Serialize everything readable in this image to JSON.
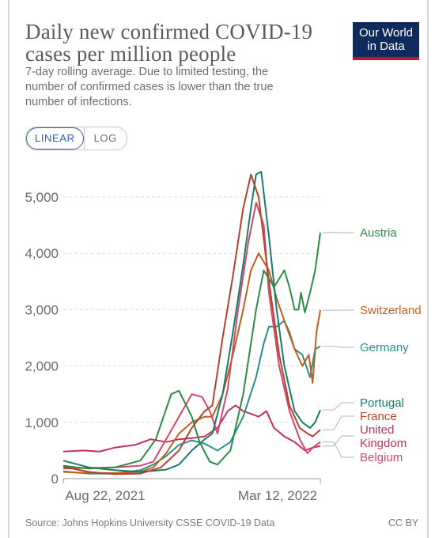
{
  "header": {
    "title": "Daily new confirmed COVID-19 cases per million people",
    "subtitle": "7-day rolling average. Due to limited testing, the number of confirmed cases is lower than the true number of infections."
  },
  "logo": {
    "line1": "Our World",
    "line2": "in Data",
    "bg_color": "#0f2b5b",
    "accent_color": "#c8102e"
  },
  "scale_toggle": {
    "linear_label": "LINEAR",
    "log_label": "LOG",
    "selected": "LINEAR"
  },
  "footer": {
    "source": "Source: Johns Hopkins University CSSE COVID-19 Data",
    "license": "CC BY"
  },
  "chart_data": {
    "type": "line",
    "title": "Daily new confirmed COVID-19 cases per million people",
    "ylim": [
      0,
      5500
    ],
    "y_ticks": [
      0,
      1000,
      2000,
      3000,
      4000,
      5000
    ],
    "y_tick_labels": [
      "0",
      "1,000",
      "2,000",
      "3,000",
      "4,000",
      "5,000"
    ],
    "x_tick_labels": [
      "Aug 22, 2021",
      "Mar 12, 2022"
    ],
    "grid": "horizontal dashed",
    "legend": "right, labels at line ends",
    "series": [
      {
        "name": "Austria",
        "color": "#2e8b47",
        "points": [
          [
            0,
            230
          ],
          [
            0.05,
            200
          ],
          [
            0.1,
            180
          ],
          [
            0.2,
            200
          ],
          [
            0.3,
            320
          ],
          [
            0.36,
            700
          ],
          [
            0.42,
            1500
          ],
          [
            0.45,
            1560
          ],
          [
            0.5,
            1100
          ],
          [
            0.53,
            650
          ],
          [
            0.57,
            300
          ],
          [
            0.6,
            250
          ],
          [
            0.65,
            500
          ],
          [
            0.7,
            1500
          ],
          [
            0.75,
            3000
          ],
          [
            0.78,
            3700
          ],
          [
            0.82,
            3400
          ],
          [
            0.86,
            3700
          ],
          [
            0.88,
            3400
          ],
          [
            0.9,
            3000
          ],
          [
            0.915,
            3000
          ],
          [
            0.925,
            3300
          ],
          [
            0.94,
            2950
          ],
          [
            0.96,
            3300
          ],
          [
            0.98,
            3700
          ],
          [
            1,
            4370
          ]
        ]
      },
      {
        "name": "Switzerland",
        "color": "#c15f1e",
        "points": [
          [
            0,
            120
          ],
          [
            0.1,
            100
          ],
          [
            0.2,
            100
          ],
          [
            0.3,
            120
          ],
          [
            0.35,
            200
          ],
          [
            0.4,
            450
          ],
          [
            0.45,
            800
          ],
          [
            0.5,
            1000
          ],
          [
            0.55,
            1100
          ],
          [
            0.58,
            1100
          ],
          [
            0.62,
            1500
          ],
          [
            0.66,
            2200
          ],
          [
            0.7,
            3000
          ],
          [
            0.73,
            3700
          ],
          [
            0.76,
            4000
          ],
          [
            0.8,
            3700
          ],
          [
            0.83,
            3200
          ],
          [
            0.86,
            2800
          ],
          [
            0.9,
            2300
          ],
          [
            0.93,
            2000
          ],
          [
            0.955,
            2200
          ],
          [
            0.97,
            1700
          ],
          [
            0.985,
            2600
          ],
          [
            1,
            2990
          ]
        ]
      },
      {
        "name": "Germany",
        "color": "#2a8e8e",
        "points": [
          [
            0,
            130
          ],
          [
            0.1,
            90
          ],
          [
            0.2,
            90
          ],
          [
            0.3,
            150
          ],
          [
            0.35,
            250
          ],
          [
            0.4,
            400
          ],
          [
            0.45,
            600
          ],
          [
            0.5,
            680
          ],
          [
            0.55,
            620
          ],
          [
            0.6,
            500
          ],
          [
            0.65,
            650
          ],
          [
            0.7,
            1100
          ],
          [
            0.75,
            1800
          ],
          [
            0.78,
            2400
          ],
          [
            0.8,
            2700
          ],
          [
            0.83,
            2700
          ],
          [
            0.86,
            2800
          ],
          [
            0.88,
            2600
          ],
          [
            0.9,
            2300
          ],
          [
            0.93,
            2200
          ],
          [
            0.96,
            1800
          ],
          [
            0.98,
            2300
          ],
          [
            1,
            2350
          ]
        ]
      },
      {
        "name": "Portugal",
        "color": "#1a7a6e",
        "points": [
          [
            0,
            320
          ],
          [
            0.1,
            200
          ],
          [
            0.2,
            150
          ],
          [
            0.3,
            120
          ],
          [
            0.4,
            160
          ],
          [
            0.45,
            250
          ],
          [
            0.5,
            500
          ],
          [
            0.55,
            700
          ],
          [
            0.58,
            800
          ],
          [
            0.62,
            1500
          ],
          [
            0.66,
            2600
          ],
          [
            0.7,
            3800
          ],
          [
            0.73,
            4800
          ],
          [
            0.75,
            5400
          ],
          [
            0.77,
            5450
          ],
          [
            0.8,
            4300
          ],
          [
            0.83,
            3000
          ],
          [
            0.86,
            2000
          ],
          [
            0.9,
            1200
          ],
          [
            0.93,
            1000
          ],
          [
            0.96,
            900
          ],
          [
            0.98,
            1000
          ],
          [
            1,
            1220
          ]
        ]
      },
      {
        "name": "France",
        "color": "#b5422c",
        "points": [
          [
            0,
            210
          ],
          [
            0.1,
            120
          ],
          [
            0.2,
            80
          ],
          [
            0.3,
            90
          ],
          [
            0.38,
            200
          ],
          [
            0.45,
            500
          ],
          [
            0.5,
            900
          ],
          [
            0.55,
            1200
          ],
          [
            0.58,
            1300
          ],
          [
            0.62,
            2500
          ],
          [
            0.66,
            3600
          ],
          [
            0.7,
            4800
          ],
          [
            0.73,
            5400
          ],
          [
            0.76,
            5000
          ],
          [
            0.8,
            3500
          ],
          [
            0.84,
            2200
          ],
          [
            0.88,
            1300
          ],
          [
            0.92,
            900
          ],
          [
            0.95,
            800
          ],
          [
            0.97,
            750
          ],
          [
            1,
            870
          ]
        ]
      },
      {
        "name": "United Kingdom",
        "color": "#c4305c",
        "points": [
          [
            0,
            480
          ],
          [
            0.08,
            500
          ],
          [
            0.14,
            480
          ],
          [
            0.2,
            550
          ],
          [
            0.28,
            600
          ],
          [
            0.34,
            700
          ],
          [
            0.4,
            650
          ],
          [
            0.45,
            700
          ],
          [
            0.5,
            720
          ],
          [
            0.55,
            750
          ],
          [
            0.6,
            900
          ],
          [
            0.64,
            1200
          ],
          [
            0.67,
            1300
          ],
          [
            0.7,
            1200
          ],
          [
            0.73,
            1150
          ],
          [
            0.76,
            1100
          ],
          [
            0.79,
            1200
          ],
          [
            0.82,
            900
          ],
          [
            0.86,
            750
          ],
          [
            0.9,
            650
          ],
          [
            0.94,
            500
          ],
          [
            0.97,
            550
          ],
          [
            1,
            580
          ]
        ]
      },
      {
        "name": "Belgium",
        "color": "#d2496b",
        "points": [
          [
            0,
            180
          ],
          [
            0.1,
            190
          ],
          [
            0.2,
            200
          ],
          [
            0.3,
            230
          ],
          [
            0.35,
            300
          ],
          [
            0.4,
            700
          ],
          [
            0.45,
            1100
          ],
          [
            0.5,
            1500
          ],
          [
            0.54,
            1450
          ],
          [
            0.57,
            1200
          ],
          [
            0.6,
            800
          ],
          [
            0.64,
            1600
          ],
          [
            0.68,
            3000
          ],
          [
            0.72,
            4200
          ],
          [
            0.75,
            4900
          ],
          [
            0.78,
            4500
          ],
          [
            0.8,
            3300
          ],
          [
            0.84,
            2000
          ],
          [
            0.88,
            1200
          ],
          [
            0.92,
            700
          ],
          [
            0.95,
            450
          ],
          [
            0.97,
            550
          ],
          [
            1,
            650
          ]
        ]
      }
    ],
    "labels": [
      {
        "text": "Austria",
        "series": "Austria"
      },
      {
        "text": "Switzerland",
        "series": "Switzerland"
      },
      {
        "text": "Germany",
        "series": "Germany"
      },
      {
        "text": "Portugal",
        "series": "Portugal"
      },
      {
        "text": "France",
        "series": "France"
      },
      {
        "text": "United",
        "series": "United Kingdom"
      },
      {
        "text": "Kingdom",
        "series": "United Kingdom"
      },
      {
        "text": "Belgium",
        "series": "Belgium"
      }
    ]
  }
}
